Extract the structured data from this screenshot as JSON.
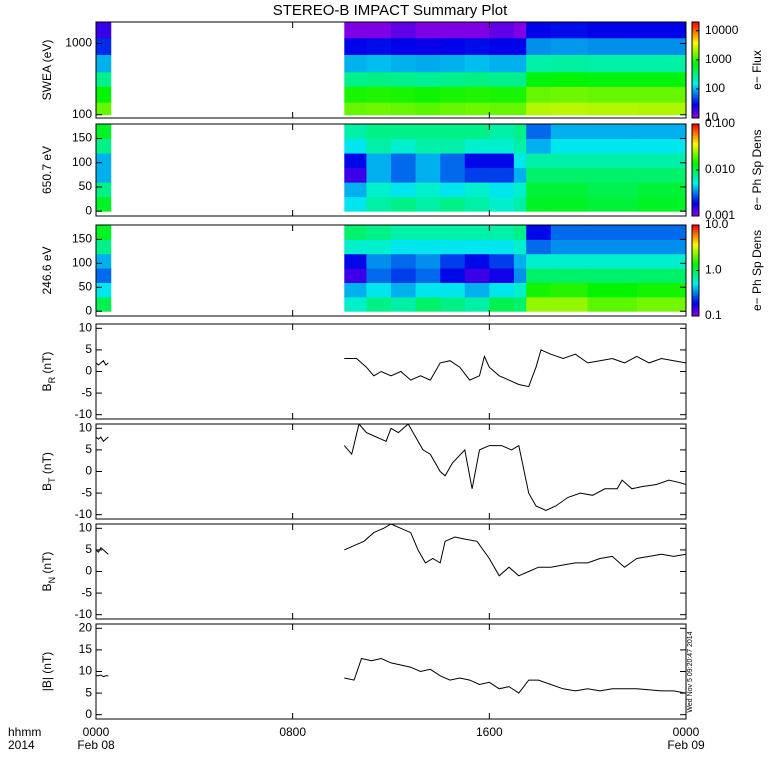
{
  "title": "STEREO-B IMPACT Summary Plot",
  "timestamp": "Wed Nov  5 09:20:47 2014",
  "x_axis": {
    "xlim": [
      0,
      24
    ],
    "xticks": [
      {
        "value": 0,
        "label": "0000"
      },
      {
        "value": 8,
        "label": "0800"
      },
      {
        "value": 16,
        "label": "1600"
      },
      {
        "value": 24,
        "label": "0000"
      }
    ],
    "date_labels": [
      {
        "value": 0,
        "label": "Feb 08"
      },
      {
        "value": 24,
        "label": "Feb 09"
      }
    ],
    "row_labels": [
      "hhmm",
      "2014"
    ]
  },
  "chart_data": [
    {
      "type": "heatmap",
      "y_label": "SWEA (eV)",
      "log_y": true,
      "ylim": [
        90,
        2000
      ],
      "yticks": [
        100,
        1000
      ],
      "x_edges": [
        0,
        0.6,
        10.1,
        11,
        12,
        13,
        14,
        15,
        16,
        17,
        17.5,
        18.5,
        20,
        22,
        24
      ],
      "y_edges": [
        100,
        150,
        250,
        400,
        700,
        1200,
        2000
      ],
      "z": [
        [
          1500,
          null,
          1500,
          1600,
          1500,
          1400,
          1500,
          1600,
          1500,
          1500,
          2500,
          2600,
          2500,
          2400
        ],
        [
          800,
          null,
          900,
          950,
          900,
          850,
          900,
          950,
          900,
          900,
          1500,
          1600,
          1500,
          1500
        ],
        [
          300,
          null,
          300,
          320,
          300,
          280,
          300,
          320,
          300,
          300,
          700,
          750,
          700,
          700
        ],
        [
          100,
          null,
          100,
          110,
          100,
          95,
          100,
          110,
          100,
          100,
          250,
          260,
          250,
          250
        ],
        [
          40,
          null,
          30,
          32,
          30,
          28,
          30,
          32,
          30,
          30,
          80,
          85,
          80,
          80
        ],
        [
          20,
          null,
          12,
          12,
          15,
          12,
          12,
          12,
          15,
          12,
          30,
          32,
          30,
          30
        ]
      ],
      "colorbar": {
        "log": true,
        "clim": [
          10,
          20000
        ],
        "ticks": [
          10,
          100,
          1000,
          10000
        ],
        "label": "e− Flux"
      }
    },
    {
      "type": "heatmap",
      "y_label": "650.7 eV",
      "ylim": [
        -10,
        180
      ],
      "yticks": [
        0,
        50,
        100,
        150
      ],
      "x_edges": [
        0,
        0.6,
        10.1,
        11,
        12,
        13,
        14,
        15,
        16,
        17,
        17.5,
        18.5,
        20,
        22,
        24
      ],
      "y_edges": [
        0,
        30,
        60,
        90,
        120,
        150,
        180
      ],
      "z": [
        [
          0.012,
          null,
          0.005,
          0.007,
          0.008,
          0.007,
          0.008,
          0.007,
          0.006,
          0.007,
          0.012,
          0.012,
          0.011,
          0.012
        ],
        [
          0.008,
          null,
          0.004,
          0.006,
          0.005,
          0.006,
          0.005,
          0.006,
          0.005,
          0.006,
          0.011,
          0.011,
          0.01,
          0.011
        ],
        [
          0.004,
          null,
          0.0015,
          0.004,
          0.003,
          0.004,
          0.003,
          0.0025,
          0.0025,
          0.004,
          0.009,
          0.009,
          0.009,
          0.009
        ],
        [
          0.004,
          null,
          0.002,
          0.004,
          0.003,
          0.004,
          0.003,
          0.002,
          0.002,
          0.005,
          0.007,
          0.007,
          0.007,
          0.007
        ],
        [
          0.008,
          null,
          0.005,
          0.007,
          0.006,
          0.007,
          0.007,
          0.006,
          0.006,
          0.007,
          0.004,
          0.005,
          0.005,
          0.005
        ],
        [
          0.012,
          null,
          0.007,
          0.008,
          0.008,
          0.008,
          0.008,
          0.008,
          0.007,
          0.008,
          0.003,
          0.004,
          0.004,
          0.004
        ]
      ],
      "colorbar": {
        "log": true,
        "clim": [
          0.001,
          0.1
        ],
        "ticks": [
          0.001,
          {
            "value": 0.01,
            "label": "0.010"
          },
          {
            "value": 0.1,
            "label": "0.100"
          }
        ],
        "label": "e− Ph Sp Dens"
      }
    },
    {
      "type": "heatmap",
      "y_label": "246.6 eV",
      "ylim": [
        -10,
        180
      ],
      "yticks": [
        0,
        50,
        100,
        150
      ],
      "x_edges": [
        0,
        0.6,
        10.1,
        11,
        12,
        13,
        14,
        15,
        16,
        17,
        17.5,
        18.5,
        20,
        22,
        24
      ],
      "y_edges": [
        0,
        30,
        60,
        90,
        120,
        150,
        180
      ],
      "z": [
        [
          1.0,
          null,
          0.6,
          0.8,
          0.7,
          0.9,
          0.8,
          0.7,
          1.0,
          0.9,
          2.5,
          2.5,
          2.0,
          2.2
        ],
        [
          0.5,
          null,
          0.4,
          0.5,
          0.4,
          0.5,
          0.5,
          0.4,
          0.5,
          0.6,
          1.5,
          1.6,
          1.4,
          1.5
        ],
        [
          0.3,
          null,
          0.15,
          0.3,
          0.25,
          0.3,
          0.2,
          0.15,
          0.18,
          0.35,
          0.9,
          0.9,
          0.9,
          0.9
        ],
        [
          0.4,
          null,
          0.2,
          0.35,
          0.3,
          0.35,
          0.25,
          0.2,
          0.25,
          0.4,
          0.6,
          0.6,
          0.6,
          0.6
        ],
        [
          0.8,
          null,
          0.6,
          0.6,
          0.5,
          0.5,
          0.5,
          0.5,
          0.5,
          0.6,
          0.3,
          0.35,
          0.35,
          0.35
        ],
        [
          1.2,
          null,
          0.9,
          0.8,
          0.7,
          0.7,
          0.7,
          0.7,
          0.7,
          0.8,
          0.2,
          0.3,
          0.3,
          0.3
        ]
      ],
      "colorbar": {
        "log": true,
        "clim": [
          0.1,
          10
        ],
        "ticks": [
          0.1,
          {
            "value": 1,
            "label": "1.0"
          },
          {
            "value": 10,
            "label": "10.0"
          }
        ],
        "label": "e− Ph Sp Dens"
      }
    },
    {
      "type": "line",
      "y_label": {
        "symbol": "B",
        "subscript": "R",
        "unit": " (nT)"
      },
      "ylim": [
        -11,
        11
      ],
      "yticks": [
        -10,
        -5,
        0,
        5,
        10
      ],
      "color": "#000000",
      "x": [
        0,
        0.1,
        0.2,
        0.3,
        0.4,
        0.5,
        5,
        10.1,
        10.6,
        11,
        11.3,
        11.6,
        12,
        12.4,
        12.8,
        13.2,
        13.6,
        14,
        14.4,
        14.8,
        15.2,
        15.6,
        15.8,
        16,
        16.4,
        16.8,
        17.2,
        17.6,
        17.9,
        18.1,
        18.5,
        19,
        19.5,
        20,
        20.5,
        21,
        21.5,
        22,
        22.5,
        23,
        23.5,
        24
      ],
      "values": [
        2,
        1.5,
        2,
        2.5,
        1.5,
        2,
        null,
        3,
        3,
        1,
        -1,
        0,
        -1,
        0,
        -2,
        -1,
        -2,
        2,
        2.5,
        1,
        -2,
        -1,
        3.5,
        1,
        -1,
        -2,
        -3,
        -3.5,
        1,
        5,
        4,
        3,
        4,
        2,
        2.5,
        3,
        2,
        3.5,
        2,
        3,
        2.5,
        2
      ]
    },
    {
      "type": "line",
      "y_label": {
        "symbol": "B",
        "subscript": "T",
        "unit": " (nT)"
      },
      "ylim": [
        -11,
        11
      ],
      "yticks": [
        -10,
        -5,
        0,
        5,
        10
      ],
      "color": "#000000",
      "x": [
        0,
        0.1,
        0.2,
        0.3,
        0.4,
        0.5,
        5,
        10.1,
        10.4,
        10.7,
        11,
        11.4,
        11.8,
        12,
        12.3,
        12.7,
        13,
        13.3,
        13.6,
        14,
        14.2,
        14.5,
        15,
        15.3,
        15.6,
        16,
        16.5,
        16.9,
        17.2,
        17.6,
        17.9,
        18.3,
        18.7,
        19.2,
        19.7,
        20.2,
        20.7,
        21.2,
        21.4,
        21.8,
        22.2,
        22.8,
        23.3,
        23.7,
        24
      ],
      "values": [
        8,
        7.5,
        8,
        7,
        7.5,
        8,
        null,
        6,
        4,
        11,
        9,
        8,
        7,
        10,
        9,
        11,
        8,
        5,
        4,
        0,
        -1,
        2,
        5,
        -4,
        5,
        6,
        6,
        5,
        6,
        -5,
        -8,
        -9,
        -8,
        -6,
        -5,
        -5.5,
        -4,
        -4,
        -2,
        -4,
        -3.5,
        -3,
        -2,
        -2.5,
        -3
      ]
    },
    {
      "type": "line",
      "y_label": {
        "symbol": "B",
        "subscript": "N",
        "unit": " (nT)"
      },
      "ylim": [
        -11,
        11
      ],
      "yticks": [
        -10,
        -5,
        0,
        5,
        10
      ],
      "color": "#000000",
      "x": [
        0,
        0.1,
        0.2,
        0.3,
        0.4,
        0.5,
        5,
        10.1,
        10.5,
        10.9,
        11.3,
        11.7,
        12,
        12.4,
        12.8,
        13.1,
        13.4,
        13.7,
        14,
        14.2,
        14.6,
        15,
        15.5,
        16,
        16.4,
        16.8,
        17.2,
        17.6,
        18,
        18.5,
        19,
        19.5,
        20,
        20.5,
        21,
        21.5,
        22,
        22.5,
        23,
        23.5,
        24
      ],
      "values": [
        5,
        4.5,
        5.5,
        5,
        4.5,
        4,
        null,
        5,
        6,
        7,
        9,
        10,
        11,
        10,
        9,
        5,
        2,
        3,
        2,
        7,
        8,
        7.5,
        7,
        3,
        -1,
        1,
        -1,
        0,
        1,
        1,
        1.5,
        2,
        2,
        3,
        3.5,
        1,
        3,
        3.5,
        4,
        3.5,
        4
      ]
    },
    {
      "type": "line",
      "y_label": "|B| (nT)",
      "ylim": [
        -1,
        21
      ],
      "yticks": [
        0,
        5,
        10,
        15,
        20
      ],
      "color": "#000000",
      "x": [
        0,
        0.1,
        0.2,
        0.3,
        0.4,
        0.5,
        5,
        10.1,
        10.5,
        10.8,
        11.2,
        11.6,
        12,
        12.4,
        12.8,
        13.2,
        13.6,
        14,
        14.4,
        14.8,
        15.2,
        15.6,
        16,
        16.4,
        16.8,
        17.2,
        17.6,
        18,
        18.5,
        19,
        19.5,
        20,
        20.5,
        21,
        22,
        23,
        23.5,
        24
      ],
      "values": [
        9,
        9,
        9.2,
        8.8,
        9,
        9,
        null,
        8.5,
        8,
        13,
        12.5,
        13,
        12,
        11.5,
        11,
        10,
        10.5,
        9,
        8,
        8.5,
        8,
        7,
        7.5,
        6,
        6.5,
        5,
        8,
        8,
        7,
        6,
        5.5,
        6,
        5.5,
        6,
        6,
        5.5,
        5.5,
        5
      ]
    }
  ]
}
